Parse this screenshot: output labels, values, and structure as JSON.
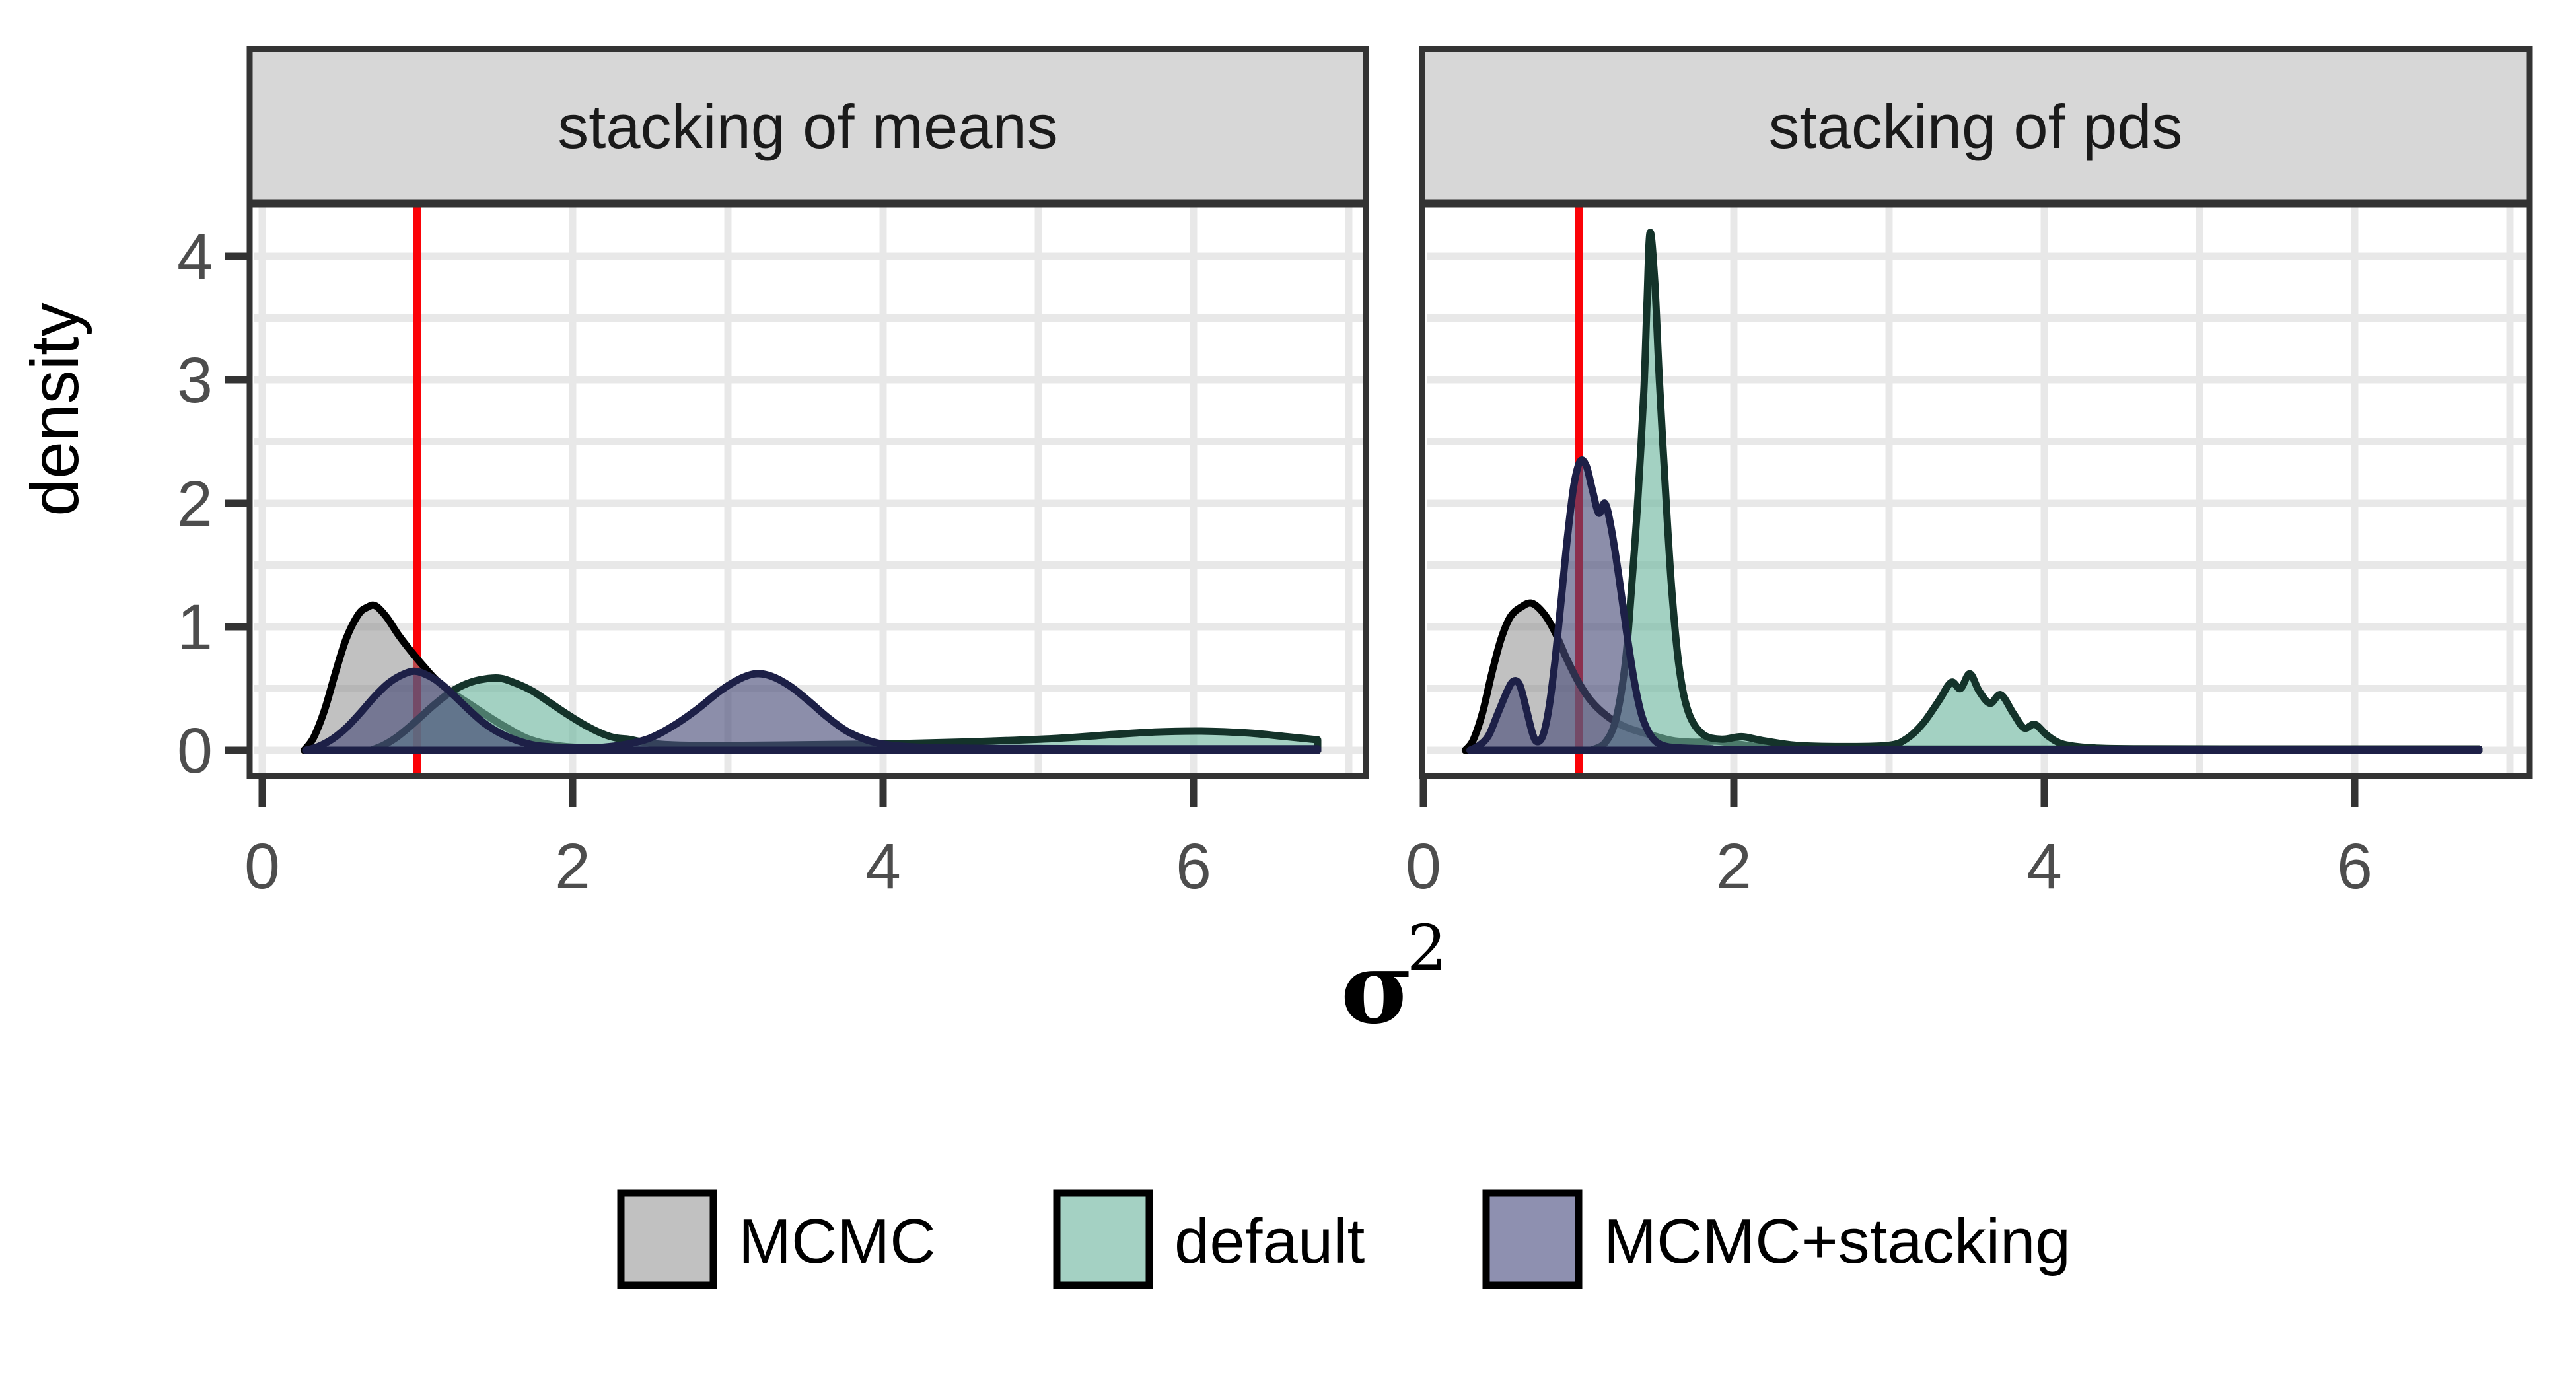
{
  "chart_data": {
    "type": "area",
    "subtype": "density-curves-faceted",
    "ylabel": "density",
    "xlabel_base": "σ",
    "xlabel_sup": "2",
    "x_ticks": [
      0,
      2,
      4,
      6
    ],
    "y_ticks": [
      0,
      1,
      2,
      3,
      4
    ],
    "x_grid_values": [
      0,
      1,
      2,
      3,
      4,
      5,
      6,
      7
    ],
    "y_grid_values": [
      0,
      0.5,
      1,
      1.5,
      2,
      2.5,
      3,
      3.5,
      4
    ],
    "xlim": [
      0,
      7.1
    ],
    "ylim": [
      0,
      4.4
    ],
    "grid_color": "#e8e8e8",
    "panel_border_color": "#333333",
    "strip_fill": "#d7d7d7",
    "tick_color": "#333333",
    "tick_label_color": "#4d4d4d",
    "reference_line": {
      "x": 1,
      "color": "#fb0207"
    },
    "series_meta": [
      {
        "name": "MCMC",
        "fill": "rgba(137,137,137,0.52)",
        "stroke": "#000000",
        "legend_fill": "#c1c1c1"
      },
      {
        "name": "default",
        "fill": "rgba(116,185,163,0.66)",
        "stroke": "#14332a",
        "legend_fill": "#a4d1c3"
      },
      {
        "name": "MCMC+stacking",
        "fill": "rgba(73,76,120,0.63)",
        "stroke": "#1d2047",
        "legend_fill": "#8e90b0"
      }
    ],
    "legend": {
      "position": "bottom",
      "entries": [
        "MCMC",
        "default",
        "MCMC+stacking"
      ]
    },
    "facets": [
      {
        "label": "stacking of means",
        "series": [
          {
            "name": "MCMC",
            "points": [
              [
                0.27,
                0
              ],
              [
                0.33,
                0.1
              ],
              [
                0.4,
                0.32
              ],
              [
                0.47,
                0.62
              ],
              [
                0.54,
                0.9
              ],
              [
                0.62,
                1.1
              ],
              [
                0.68,
                1.16
              ],
              [
                0.73,
                1.17
              ],
              [
                0.8,
                1.08
              ],
              [
                0.88,
                0.93
              ],
              [
                0.96,
                0.8
              ],
              [
                1.04,
                0.68
              ],
              [
                1.12,
                0.57
              ],
              [
                1.22,
                0.47
              ],
              [
                1.33,
                0.38
              ],
              [
                1.45,
                0.28
              ],
              [
                1.58,
                0.18
              ],
              [
                1.7,
                0.1
              ],
              [
                1.84,
                0.05
              ],
              [
                2,
                0.025
              ],
              [
                2.3,
                0.013
              ],
              [
                3,
                0.01
              ],
              [
                4.5,
                0.01
              ],
              [
                6.8,
                0.01
              ]
            ]
          },
          {
            "name": "default",
            "points": [
              [
                0.7,
                0
              ],
              [
                0.78,
                0.04
              ],
              [
                0.86,
                0.1
              ],
              [
                0.94,
                0.18
              ],
              [
                1.02,
                0.27
              ],
              [
                1.1,
                0.36
              ],
              [
                1.2,
                0.46
              ],
              [
                1.3,
                0.53
              ],
              [
                1.4,
                0.57
              ],
              [
                1.52,
                0.585
              ],
              [
                1.62,
                0.55
              ],
              [
                1.74,
                0.48
              ],
              [
                1.86,
                0.38
              ],
              [
                1.98,
                0.28
              ],
              [
                2.1,
                0.19
              ],
              [
                2.2,
                0.13
              ],
              [
                2.28,
                0.1
              ],
              [
                2.36,
                0.09
              ],
              [
                2.44,
                0.07
              ],
              [
                2.56,
                0.05
              ],
              [
                2.75,
                0.04
              ],
              [
                3.1,
                0.04
              ],
              [
                3.5,
                0.045
              ],
              [
                3.9,
                0.05
              ],
              [
                4.3,
                0.06
              ],
              [
                4.7,
                0.075
              ],
              [
                5.1,
                0.095
              ],
              [
                5.45,
                0.125
              ],
              [
                5.75,
                0.148
              ],
              [
                6.05,
                0.155
              ],
              [
                6.35,
                0.14
              ],
              [
                6.6,
                0.11
              ],
              [
                6.8,
                0.085
              ]
            ]
          },
          {
            "name": "MCMC+stacking",
            "points": [
              [
                0.28,
                0
              ],
              [
                0.36,
                0.03
              ],
              [
                0.45,
                0.09
              ],
              [
                0.54,
                0.18
              ],
              [
                0.63,
                0.3
              ],
              [
                0.72,
                0.43
              ],
              [
                0.81,
                0.54
              ],
              [
                0.9,
                0.61
              ],
              [
                0.98,
                0.64
              ],
              [
                1.06,
                0.61
              ],
              [
                1.14,
                0.55
              ],
              [
                1.23,
                0.45
              ],
              [
                1.33,
                0.33
              ],
              [
                1.43,
                0.22
              ],
              [
                1.53,
                0.14
              ],
              [
                1.64,
                0.08
              ],
              [
                1.76,
                0.04
              ],
              [
                1.9,
                0.025
              ],
              [
                2.05,
                0.02
              ],
              [
                2.2,
                0.025
              ],
              [
                2.35,
                0.05
              ],
              [
                2.5,
                0.1
              ],
              [
                2.65,
                0.2
              ],
              [
                2.8,
                0.33
              ],
              [
                2.95,
                0.48
              ],
              [
                3.08,
                0.58
              ],
              [
                3.18,
                0.62
              ],
              [
                3.28,
                0.6
              ],
              [
                3.4,
                0.52
              ],
              [
                3.52,
                0.4
              ],
              [
                3.64,
                0.27
              ],
              [
                3.76,
                0.16
              ],
              [
                3.88,
                0.09
              ],
              [
                4,
                0.05
              ],
              [
                4.15,
                0.03
              ],
              [
                4.35,
                0.02
              ],
              [
                4.7,
                0.015
              ],
              [
                5.5,
                0.012
              ],
              [
                6.8,
                0.012
              ]
            ]
          }
        ]
      },
      {
        "label": "stacking of pds",
        "series": [
          {
            "name": "MCMC",
            "points": [
              [
                0.27,
                0
              ],
              [
                0.32,
                0.08
              ],
              [
                0.38,
                0.3
              ],
              [
                0.44,
                0.62
              ],
              [
                0.5,
                0.9
              ],
              [
                0.56,
                1.08
              ],
              [
                0.63,
                1.16
              ],
              [
                0.7,
                1.19
              ],
              [
                0.78,
                1.1
              ],
              [
                0.85,
                0.95
              ],
              [
                0.92,
                0.75
              ],
              [
                1,
                0.55
              ],
              [
                1.08,
                0.4
              ],
              [
                1.18,
                0.28
              ],
              [
                1.3,
                0.19
              ],
              [
                1.45,
                0.13
              ],
              [
                1.6,
                0.08
              ],
              [
                1.75,
                0.065
              ],
              [
                1.88,
                0.075
              ],
              [
                2,
                0.055
              ],
              [
                2.15,
                0.03
              ],
              [
                2.4,
                0.015
              ],
              [
                3,
                0.01
              ],
              [
                6.8,
                0.01
              ]
            ]
          },
          {
            "name": "default",
            "points": [
              [
                1.08,
                0
              ],
              [
                1.17,
                0.06
              ],
              [
                1.24,
                0.25
              ],
              [
                1.3,
                0.7
              ],
              [
                1.34,
                1.3
              ],
              [
                1.38,
                2
              ],
              [
                1.42,
                2.9
              ],
              [
                1.44,
                3.6
              ],
              [
                1.46,
                4.19
              ],
              [
                1.49,
                3.8
              ],
              [
                1.52,
                3
              ],
              [
                1.56,
                2.1
              ],
              [
                1.6,
                1.3
              ],
              [
                1.65,
                0.65
              ],
              [
                1.71,
                0.3
              ],
              [
                1.8,
                0.13
              ],
              [
                1.92,
                0.09
              ],
              [
                2.05,
                0.11
              ],
              [
                2.18,
                0.08
              ],
              [
                2.4,
                0.04
              ],
              [
                2.7,
                0.03
              ],
              [
                3,
                0.04
              ],
              [
                3.12,
                0.1
              ],
              [
                3.22,
                0.22
              ],
              [
                3.32,
                0.4
              ],
              [
                3.4,
                0.55
              ],
              [
                3.46,
                0.5
              ],
              [
                3.52,
                0.62
              ],
              [
                3.58,
                0.48
              ],
              [
                3.65,
                0.38
              ],
              [
                3.72,
                0.45
              ],
              [
                3.8,
                0.3
              ],
              [
                3.87,
                0.18
              ],
              [
                3.94,
                0.21
              ],
              [
                4.02,
                0.12
              ],
              [
                4.12,
                0.05
              ],
              [
                4.3,
                0.02
              ],
              [
                4.6,
                0.012
              ],
              [
                5.5,
                0.01
              ],
              [
                6.8,
                0.01
              ]
            ]
          },
          {
            "name": "MCMC+stacking",
            "points": [
              [
                0.3,
                0
              ],
              [
                0.36,
                0.04
              ],
              [
                0.42,
                0.12
              ],
              [
                0.48,
                0.3
              ],
              [
                0.54,
                0.48
              ],
              [
                0.58,
                0.56
              ],
              [
                0.62,
                0.53
              ],
              [
                0.66,
                0.35
              ],
              [
                0.7,
                0.15
              ],
              [
                0.73,
                0.07
              ],
              [
                0.77,
                0.12
              ],
              [
                0.81,
                0.35
              ],
              [
                0.85,
                0.75
              ],
              [
                0.89,
                1.25
              ],
              [
                0.93,
                1.75
              ],
              [
                0.97,
                2.15
              ],
              [
                1.01,
                2.34
              ],
              [
                1.05,
                2.3
              ],
              [
                1.09,
                2.1
              ],
              [
                1.13,
                1.92
              ],
              [
                1.17,
                2
              ],
              [
                1.21,
                1.8
              ],
              [
                1.26,
                1.4
              ],
              [
                1.31,
                0.95
              ],
              [
                1.36,
                0.55
              ],
              [
                1.41,
                0.27
              ],
              [
                1.47,
                0.11
              ],
              [
                1.54,
                0.04
              ],
              [
                1.65,
                0.02
              ],
              [
                1.85,
                0.012
              ],
              [
                2.2,
                0.008
              ],
              [
                6.8,
                0.008
              ]
            ]
          }
        ]
      }
    ]
  }
}
